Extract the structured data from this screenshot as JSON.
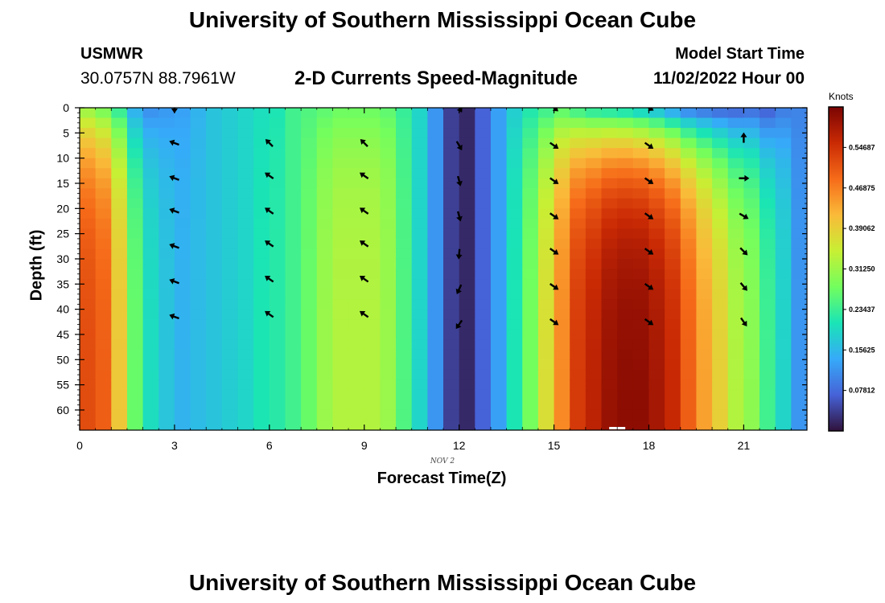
{
  "header": {
    "main_title": "University of Southern Mississippi Ocean Cube",
    "station": "USMWR",
    "coords": "30.0757N  88.7961W",
    "product_title": "2-D Currents Speed-Magnitude",
    "start_label": "Model Start Time",
    "start_value": "11/02/2022 Hour 00"
  },
  "footer": {
    "repeat_title": "University of Southern Mississippi Ocean Cube"
  },
  "chart_data": {
    "type": "heatmap",
    "xlabel": "Forecast Time(Z)",
    "ylabel": "Depth (ft)",
    "date_label": "NOV 2",
    "x_ticks": [
      0,
      3,
      6,
      9,
      12,
      15,
      18,
      21
    ],
    "y_ticks": [
      0,
      5,
      10,
      15,
      20,
      25,
      30,
      35,
      40,
      45,
      50,
      55,
      60
    ],
    "xlim": [
      0,
      23
    ],
    "ylim": [
      0,
      64
    ],
    "y_inverted": true,
    "colorbar": {
      "units": "Knots",
      "range": [
        0.0,
        0.625
      ],
      "tick_labels": [
        "0.54687",
        "0.46875",
        "0.39062",
        "0.31250",
        "0.23437",
        "0.15625",
        "0.07812"
      ],
      "tick_values": [
        0.54687,
        0.46875,
        0.39062,
        0.3125,
        0.23437,
        0.15625,
        0.07812
      ],
      "colormap": [
        "#30123b",
        "#4662d7",
        "#36aaf9",
        "#1ae4b6",
        "#72fe5e",
        "#c8ef34",
        "#faba39",
        "#f66b19",
        "#ca2a04",
        "#7a0403"
      ]
    },
    "speed_by_hour": {
      "hours": [
        0,
        0.5,
        1,
        1.5,
        2,
        2.5,
        3,
        3.5,
        4,
        4.5,
        5,
        5.5,
        6,
        6.5,
        7,
        7.5,
        8,
        8.5,
        9,
        9.5,
        10,
        10.5,
        11,
        11.5,
        12,
        12.5,
        13,
        13.5,
        14,
        14.5,
        15,
        15.5,
        16,
        16.5,
        17,
        17.5,
        18,
        18.5,
        19,
        19.5,
        20,
        20.5,
        21,
        21.5,
        22,
        22.5,
        23
      ],
      "surface_knots": [
        0.3,
        0.27,
        0.22,
        0.14,
        0.11,
        0.12,
        0.13,
        0.15,
        0.17,
        0.18,
        0.19,
        0.2,
        0.21,
        0.24,
        0.25,
        0.26,
        0.27,
        0.27,
        0.27,
        0.26,
        0.23,
        0.19,
        0.12,
        0.04,
        0.02,
        0.07,
        0.13,
        0.18,
        0.21,
        0.23,
        0.25,
        0.22,
        0.2,
        0.19,
        0.18,
        0.16,
        0.14,
        0.11,
        0.08,
        0.07,
        0.06,
        0.06,
        0.07,
        0.06,
        0.09,
        0.1,
        0.1
      ],
      "bottom_knots": [
        0.52,
        0.5,
        0.4,
        0.27,
        0.2,
        0.17,
        0.15,
        0.16,
        0.17,
        0.18,
        0.19,
        0.21,
        0.22,
        0.24,
        0.27,
        0.31,
        0.33,
        0.33,
        0.33,
        0.31,
        0.25,
        0.19,
        0.12,
        0.04,
        0.02,
        0.07,
        0.13,
        0.21,
        0.28,
        0.37,
        0.46,
        0.54,
        0.57,
        0.6,
        0.61,
        0.61,
        0.59,
        0.56,
        0.5,
        0.44,
        0.39,
        0.33,
        0.3,
        0.24,
        0.19,
        0.12,
        0.07
      ]
    },
    "vectors": [
      {
        "hour": 3,
        "depth": 0,
        "angle_deg": 90
      },
      {
        "hour": 3,
        "depth": 7,
        "angle_deg": 200
      },
      {
        "hour": 3,
        "depth": 14,
        "angle_deg": 200
      },
      {
        "hour": 3,
        "depth": 20.5,
        "angle_deg": 200
      },
      {
        "hour": 3,
        "depth": 27.5,
        "angle_deg": 200
      },
      {
        "hour": 3,
        "depth": 34.5,
        "angle_deg": 200
      },
      {
        "hour": 3,
        "depth": 41.5,
        "angle_deg": 200
      },
      {
        "hour": 6,
        "depth": 7,
        "angle_deg": 225
      },
      {
        "hour": 6,
        "depth": 13.5,
        "angle_deg": 215
      },
      {
        "hour": 6,
        "depth": 20.5,
        "angle_deg": 215
      },
      {
        "hour": 6,
        "depth": 27,
        "angle_deg": 215
      },
      {
        "hour": 6,
        "depth": 34,
        "angle_deg": 215
      },
      {
        "hour": 6,
        "depth": 41,
        "angle_deg": 215
      },
      {
        "hour": 9,
        "depth": 7,
        "angle_deg": 225
      },
      {
        "hour": 9,
        "depth": 13.5,
        "angle_deg": 215
      },
      {
        "hour": 9,
        "depth": 20.5,
        "angle_deg": 215
      },
      {
        "hour": 9,
        "depth": 27,
        "angle_deg": 215
      },
      {
        "hour": 9,
        "depth": 34,
        "angle_deg": 215
      },
      {
        "hour": 9,
        "depth": 41,
        "angle_deg": 215
      },
      {
        "hour": 12,
        "depth": 0,
        "angle_deg": 60
      },
      {
        "hour": 12,
        "depth": 7.5,
        "angle_deg": 60
      },
      {
        "hour": 12,
        "depth": 14.5,
        "angle_deg": 75
      },
      {
        "hour": 12,
        "depth": 21.5,
        "angle_deg": 75
      },
      {
        "hour": 12,
        "depth": 29,
        "angle_deg": 95
      },
      {
        "hour": 12,
        "depth": 36,
        "angle_deg": 115
      },
      {
        "hour": 12,
        "depth": 43,
        "angle_deg": 125
      },
      {
        "hour": 15,
        "depth": 0,
        "angle_deg": 40
      },
      {
        "hour": 15,
        "depth": 7.5,
        "angle_deg": 35
      },
      {
        "hour": 15,
        "depth": 14.5,
        "angle_deg": 35
      },
      {
        "hour": 15,
        "depth": 21.5,
        "angle_deg": 35
      },
      {
        "hour": 15,
        "depth": 28.5,
        "angle_deg": 35
      },
      {
        "hour": 15,
        "depth": 35.5,
        "angle_deg": 35
      },
      {
        "hour": 15,
        "depth": 42.5,
        "angle_deg": 35
      },
      {
        "hour": 18,
        "depth": 0,
        "angle_deg": 30
      },
      {
        "hour": 18,
        "depth": 7.5,
        "angle_deg": 35
      },
      {
        "hour": 18,
        "depth": 14.5,
        "angle_deg": 35
      },
      {
        "hour": 18,
        "depth": 21.5,
        "angle_deg": 35
      },
      {
        "hour": 18,
        "depth": 28.5,
        "angle_deg": 35
      },
      {
        "hour": 18,
        "depth": 35.5,
        "angle_deg": 35
      },
      {
        "hour": 18,
        "depth": 42.5,
        "angle_deg": 35
      },
      {
        "hour": 21,
        "depth": 6,
        "angle_deg": -90
      },
      {
        "hour": 21,
        "depth": 14,
        "angle_deg": 0
      },
      {
        "hour": 21,
        "depth": 21.5,
        "angle_deg": 30
      },
      {
        "hour": 21,
        "depth": 28.5,
        "angle_deg": 45
      },
      {
        "hour": 21,
        "depth": 35.5,
        "angle_deg": 50
      },
      {
        "hour": 21,
        "depth": 42.5,
        "angle_deg": 55
      }
    ],
    "bottom_marker": {
      "hour": 17,
      "depth": 64
    }
  }
}
